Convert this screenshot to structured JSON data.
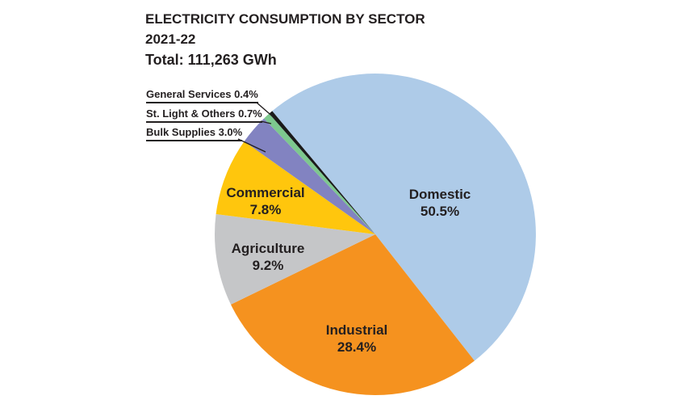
{
  "chart_data": {
    "type": "pie",
    "title": "ELECTRICITY CONSUMPTION BY SECTOR",
    "subtitle": "2021-22",
    "total_label": "Total: 111,263 GWh",
    "total_value": 111263,
    "unit": "GWh",
    "legend_position": "none",
    "grid": false,
    "background_color": "#ffffff",
    "text_color": "#231f20",
    "start_angle_clockwise_from_12": -39.94,
    "slices": [
      {
        "id": "domestic",
        "name": "Domestic",
        "pct": 50.5,
        "pct_label": "50.5%",
        "color": "#aecbe8",
        "label_style": "inside"
      },
      {
        "id": "industrial",
        "name": "Industrial",
        "pct": 28.4,
        "pct_label": "28.4%",
        "color": "#f5921f",
        "label_style": "inside"
      },
      {
        "id": "agriculture",
        "name": "Agriculture",
        "pct": 9.2,
        "pct_label": "9.2%",
        "color": "#c5c6c8",
        "label_style": "inside"
      },
      {
        "id": "commercial",
        "name": "Commercial",
        "pct": 7.8,
        "pct_label": "7.8%",
        "color": "#ffc60d",
        "label_style": "inside"
      },
      {
        "id": "bulk-supplies",
        "name": "Bulk Supplies",
        "pct": 3.0,
        "pct_label": "3.0%",
        "color": "#8283c1",
        "label_style": "callout"
      },
      {
        "id": "st-light-others",
        "name": "St. Light & Others",
        "pct": 0.7,
        "pct_label": "0.7%",
        "color": "#7dc88e",
        "label_style": "callout"
      },
      {
        "id": "general-services",
        "name": "General Services",
        "pct": 0.4,
        "pct_label": "0.4%",
        "color": "#1a1a1a",
        "label_style": "callout"
      }
    ]
  }
}
